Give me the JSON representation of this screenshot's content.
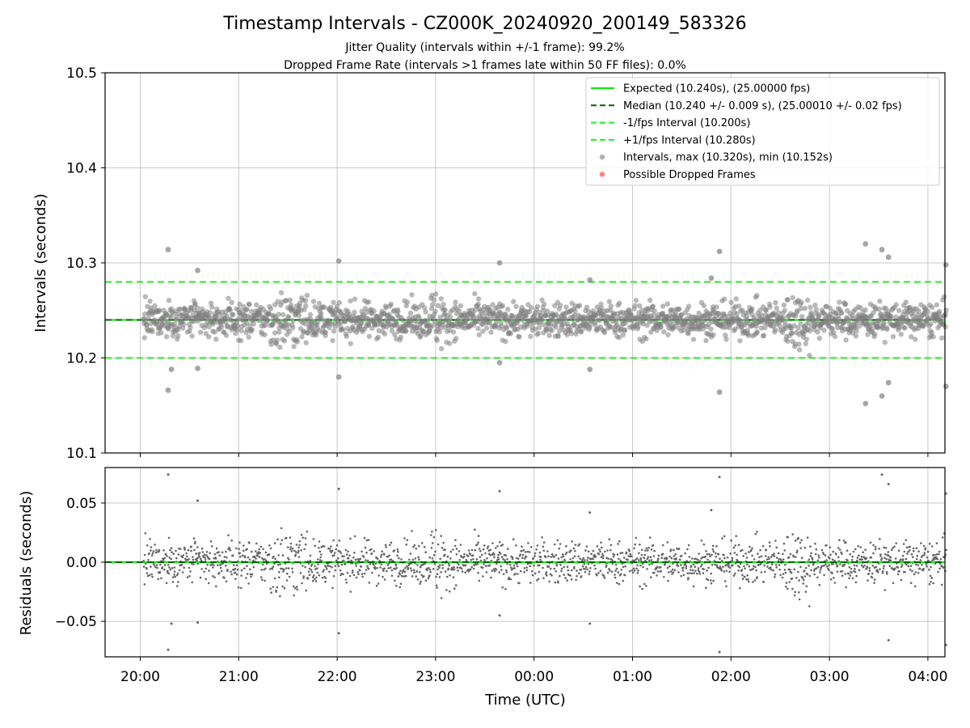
{
  "title": "Timestamp Intervals - CZ000K_20240920_200149_583326",
  "subtitle_1": "Jitter Quality (intervals within +/-1 frame): 99.2%",
  "subtitle_2": "Dropped Frame Rate (intervals >1 frames late within 50 FF files): 0.0%",
  "colors": {
    "expected": "#00ee00",
    "median": "#006400",
    "bounds": "#22ee22",
    "points": "#808080",
    "dropped": "#ff4444",
    "grid": "#c8c8c8"
  },
  "chart_data": [
    {
      "type": "scatter",
      "panel": "intervals",
      "ylabel": "Intervals (seconds)",
      "ylim": [
        10.1,
        10.5
      ],
      "yticks": [
        "10.1",
        "10.2",
        "10.3",
        "10.4",
        "10.5"
      ],
      "xlim": [
        "2024-09-20 19:38",
        "2024-09-21 04:12"
      ],
      "grid": true,
      "legend_position": "top-right",
      "legend": [
        {
          "label": "Expected (10.240s), (25.00000 fps)",
          "style": "solid-line",
          "color": "#00ee00"
        },
        {
          "label": "Median (10.240 +/- 0.009 s), (25.00010 +/- 0.02 fps)",
          "style": "dashed-line",
          "color": "#006400"
        },
        {
          "label": "-1/fps Interval (10.200s)",
          "style": "dashed-line",
          "color": "#22ee22"
        },
        {
          "label": "+1/fps Interval (10.280s)",
          "style": "dashed-line",
          "color": "#22ee22"
        },
        {
          "label": "Intervals, max (10.320s), min (10.152s)",
          "style": "marker",
          "color": "#999999"
        },
        {
          "label": "Possible Dropped Frames",
          "style": "marker",
          "color": "#ff5555"
        }
      ],
      "lines": {
        "expected": 10.24,
        "median": 10.24,
        "minus_1_fps": 10.2,
        "plus_1_fps": 10.28
      },
      "series": [
        {
          "name": "Intervals, max (10.320s), min (10.152s)",
          "x_range": [
            "2024-09-20 20:01:49",
            "2024-09-21 04:12"
          ],
          "cadence_seconds": 10.24,
          "center": 10.24,
          "typical_spread": 0.009,
          "notable_points": [
            {
              "x": "20:17",
              "y": 10.314
            },
            {
              "x": "20:35",
              "y": 10.292
            },
            {
              "x": "20:17",
              "y": 10.166
            },
            {
              "x": "20:19",
              "y": 10.188
            },
            {
              "x": "20:35",
              "y": 10.189
            },
            {
              "x": "22:01",
              "y": 10.302
            },
            {
              "x": "22:01",
              "y": 10.18
            },
            {
              "x": "23:39",
              "y": 10.3
            },
            {
              "x": "23:39",
              "y": 10.195
            },
            {
              "x": "00:34",
              "y": 10.282
            },
            {
              "x": "00:34",
              "y": 10.188
            },
            {
              "x": "01:48",
              "y": 10.284
            },
            {
              "x": "01:53",
              "y": 10.312
            },
            {
              "x": "01:53",
              "y": 10.164
            },
            {
              "x": "03:22",
              "y": 10.32
            },
            {
              "x": "03:22",
              "y": 10.152
            },
            {
              "x": "03:32",
              "y": 10.314
            },
            {
              "x": "03:36",
              "y": 10.306
            },
            {
              "x": "03:36",
              "y": 10.174
            },
            {
              "x": "03:32",
              "y": 10.16
            },
            {
              "x": "04:11",
              "y": 10.298
            },
            {
              "x": "04:11",
              "y": 10.17
            }
          ]
        },
        {
          "name": "Possible Dropped Frames",
          "points": []
        }
      ]
    },
    {
      "type": "scatter",
      "panel": "residuals",
      "ylabel": "Residuals (seconds)",
      "xlabel": "Time (UTC)",
      "ylim": [
        -0.08,
        0.08
      ],
      "yticks": [
        "−0.05",
        "0.00",
        "0.05"
      ],
      "ytick_values": [
        -0.05,
        0.0,
        0.05
      ],
      "xticks": [
        "20:00",
        "21:00",
        "22:00",
        "23:00",
        "00:00",
        "01:00",
        "02:00",
        "03:00",
        "04:00"
      ],
      "grid": true,
      "zero_line": 0.0,
      "series": [
        {
          "name": "Residuals",
          "center": 0.0,
          "typical_spread": 0.009
        }
      ]
    }
  ]
}
